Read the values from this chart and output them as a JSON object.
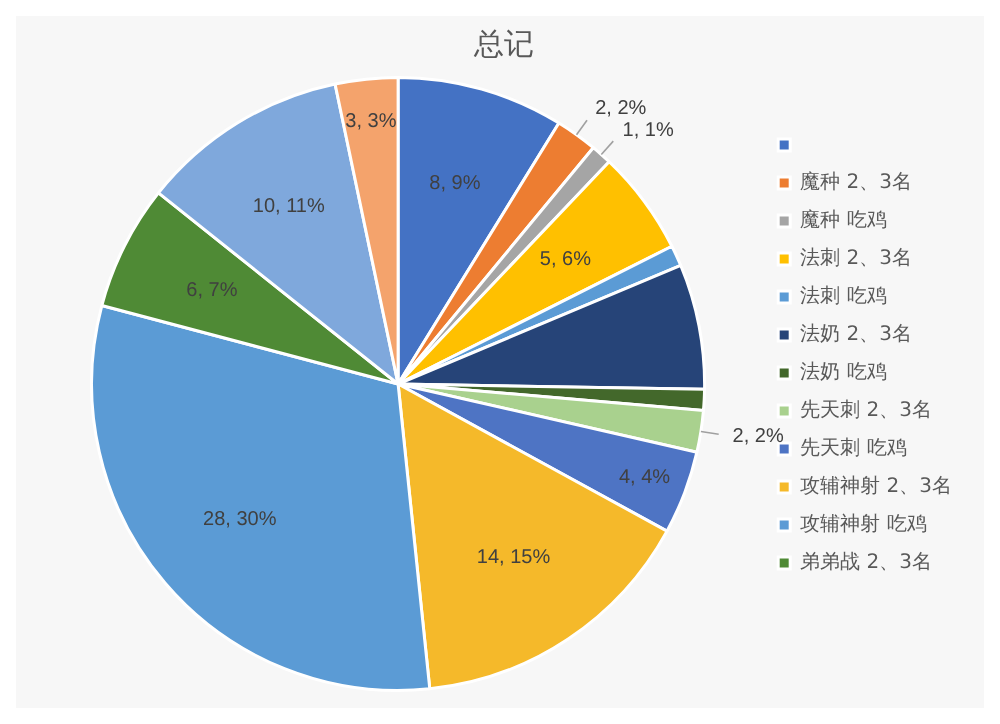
{
  "chart_data": {
    "type": "pie",
    "title": "总记",
    "categories": [
      null,
      "魔种 2、3名",
      "魔种 吃鸡",
      "法刺 2、3名",
      "法刺 吃鸡",
      "法奶 2、3名",
      "法奶 吃鸡",
      "先天刺 2、3名",
      "先天刺 吃鸡",
      "攻辅神射 2、3名",
      "攻辅神射 吃鸡",
      "弟弟战 2、3名",
      null,
      null
    ],
    "values": [
      8,
      2,
      1,
      5,
      1,
      6,
      1,
      2,
      4,
      14,
      28,
      6,
      10,
      3
    ],
    "colors": [
      "#4472c4",
      "#ed7d31",
      "#a5a5a5",
      "#ffc000",
      "#5b9bd5",
      "#264478",
      "#43682b",
      "#a9d18e",
      "#4e74c4",
      "#f5b92a",
      "#5b9bd5",
      "#4f8a35",
      "#7fa8dc",
      "#f4a36c"
    ],
    "value_labels": [
      "8, 9%",
      "2, 2%",
      "1, 1%",
      "5, 6%",
      null,
      null,
      null,
      "2, 2%",
      "4, 4%",
      "14, 15%",
      "28, 30%",
      "6, 7%",
      "10, 11%",
      "3, 3%"
    ],
    "legend": "right"
  }
}
